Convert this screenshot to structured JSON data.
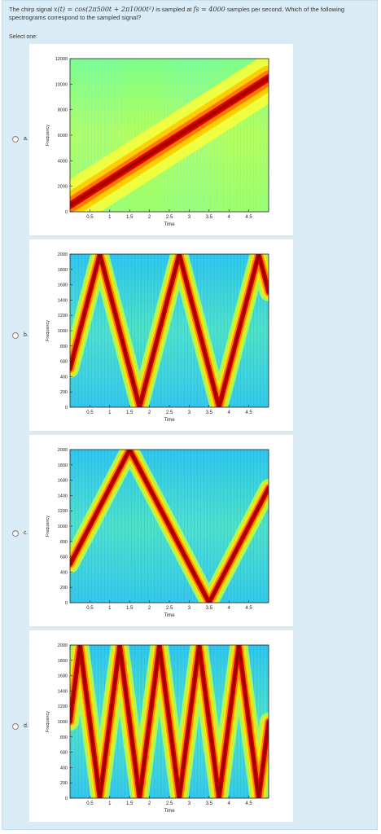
{
  "question": {
    "prefix": "The chirp signal ",
    "signal": "x(t) = cos(2π500t + 2π1000t²)",
    "middle": " is sampled at ",
    "rate": "fs = 4000",
    "suffix": " samples per second.  Which of the following spectrograms correspond to the sampled signal?"
  },
  "select_one": "Select one:",
  "colors": {
    "page_bg": "#d9ecf5",
    "panel_bg": "#ffffff",
    "track": "#b30000"
  },
  "options": [
    {
      "label": "a.",
      "chart_data": {
        "type": "heatmap",
        "xlabel": "Time",
        "ylabel": "Frequency",
        "xlim": [
          0,
          5
        ],
        "ylim": [
          0,
          12000
        ],
        "xticks": [
          "0.5",
          "1",
          "1.5",
          "2",
          "2.5",
          "3",
          "3.5",
          "4",
          "4.5"
        ],
        "yticks": [
          "0",
          "2000",
          "4000",
          "6000",
          "8000",
          "10000",
          "12000"
        ],
        "track": [
          [
            0,
            500
          ],
          [
            5,
            10500
          ]
        ]
      }
    },
    {
      "label": "b.",
      "chart_data": {
        "type": "heatmap",
        "xlabel": "Time",
        "ylabel": "Frequency",
        "xlim": [
          0,
          5
        ],
        "ylim": [
          0,
          2000
        ],
        "xticks": [
          "0.5",
          "1",
          "1.5",
          "2",
          "2.5",
          "3",
          "3.5",
          "4",
          "4.5"
        ],
        "yticks": [
          "0",
          "200",
          "400",
          "600",
          "800",
          "1000",
          "1200",
          "1400",
          "1600",
          "1800",
          "2000"
        ],
        "track": [
          [
            0,
            500
          ],
          [
            0.75,
            2000
          ],
          [
            1.75,
            0
          ],
          [
            2.75,
            2000
          ],
          [
            3.75,
            0
          ],
          [
            4.75,
            2000
          ],
          [
            5,
            1500
          ]
        ]
      }
    },
    {
      "label": "c.",
      "chart_data": {
        "type": "heatmap",
        "xlabel": "Time",
        "ylabel": "Frequency",
        "xlim": [
          0,
          5
        ],
        "ylim": [
          0,
          2000
        ],
        "xticks": [
          "0.5",
          "1",
          "1.5",
          "2",
          "2.5",
          "3",
          "3.5",
          "4",
          "4.5"
        ],
        "yticks": [
          "0",
          "200",
          "400",
          "600",
          "800",
          "1000",
          "1200",
          "1400",
          "1600",
          "1800",
          "2000"
        ],
        "track": [
          [
            0,
            500
          ],
          [
            1.5,
            2000
          ],
          [
            3.5,
            0
          ],
          [
            5,
            1500
          ]
        ]
      }
    },
    {
      "label": "d.",
      "chart_data": {
        "type": "heatmap",
        "xlabel": "Time",
        "ylabel": "Frequency",
        "xlim": [
          0,
          5
        ],
        "ylim": [
          0,
          2000
        ],
        "xticks": [
          "0.5",
          "1",
          "1.5",
          "2",
          "2.5",
          "3",
          "3.5",
          "4",
          "4.5"
        ],
        "yticks": [
          "0",
          "200",
          "400",
          "600",
          "800",
          "1000",
          "1200",
          "1400",
          "1600",
          "1800",
          "2000"
        ],
        "track": [
          [
            0,
            1000
          ],
          [
            0.25,
            2000
          ],
          [
            0.75,
            0
          ],
          [
            1.25,
            2000
          ],
          [
            1.75,
            0
          ],
          [
            2.25,
            2000
          ],
          [
            2.75,
            0
          ],
          [
            3.25,
            2000
          ],
          [
            3.75,
            0
          ],
          [
            4.25,
            2000
          ],
          [
            4.75,
            0
          ],
          [
            5,
            1000
          ]
        ]
      }
    }
  ]
}
